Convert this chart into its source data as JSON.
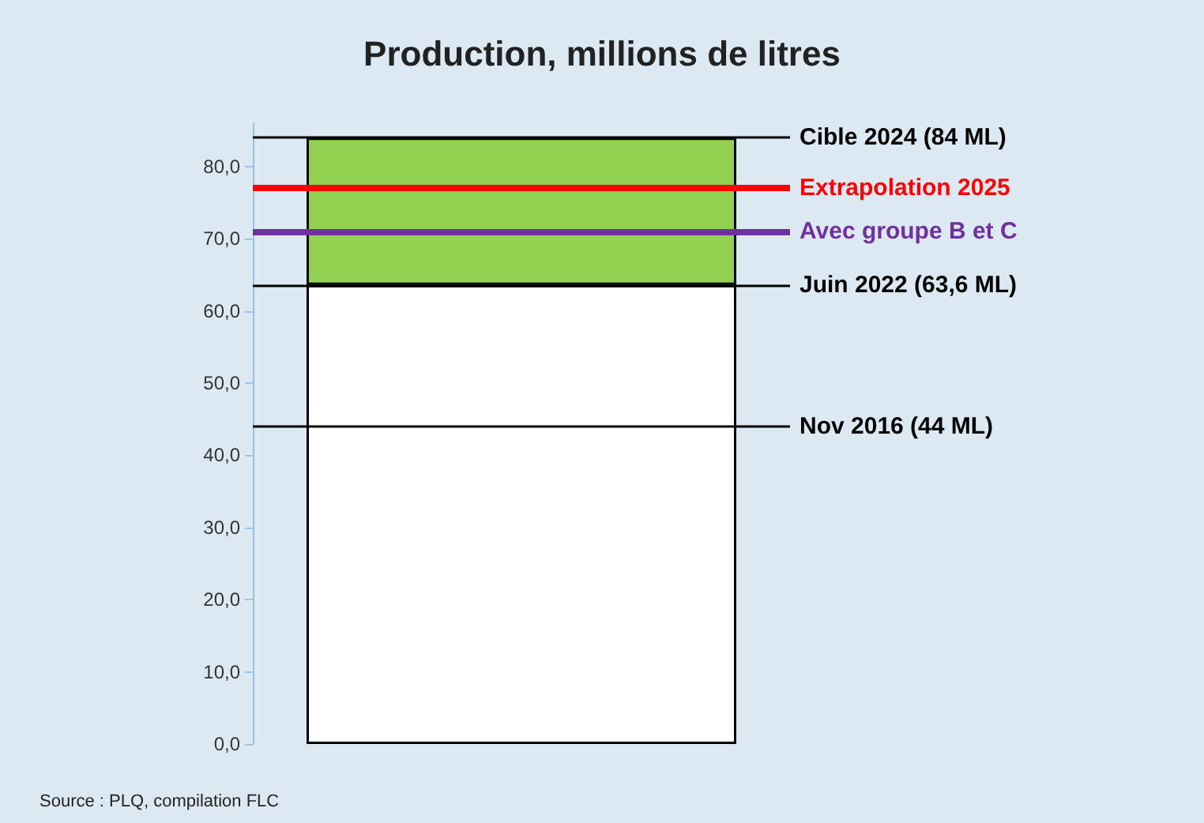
{
  "chart_data": {
    "type": "bar",
    "title": "Production, millions de litres",
    "categories": [
      null
    ],
    "stacked": true,
    "series": [
      {
        "color": "#ffffff",
        "values": [
          63.6
        ]
      },
      {
        "color": "#92d050",
        "values": [
          20.4
        ]
      }
    ],
    "ylim": [
      0,
      86
    ],
    "yticks": [
      {
        "value": 0,
        "label": "0,0"
      },
      {
        "value": 10,
        "label": "10,0"
      },
      {
        "value": 20,
        "label": "20,0"
      },
      {
        "value": 30,
        "label": "30,0"
      },
      {
        "value": 40,
        "label": "40,0"
      },
      {
        "value": 50,
        "label": "50,0"
      },
      {
        "value": 60,
        "label": "60,0"
      },
      {
        "value": 70,
        "label": "70,0"
      },
      {
        "value": 80,
        "label": "80,0"
      }
    ],
    "ref_lines": [
      {
        "axis": "y",
        "value": 84,
        "label": "Cible 2024 (84 ML)",
        "color": "#000000"
      },
      {
        "axis": "y",
        "value": 77,
        "label": "Extrapolation 2025",
        "color": "#ff0000"
      },
      {
        "axis": "y",
        "value": 71,
        "label": "Avec groupe B et C",
        "color": "#7030a0"
      },
      {
        "axis": "y",
        "value": 63.6,
        "label": "Juin 2022 (63,6 ML)",
        "color": "#000000"
      },
      {
        "axis": "y",
        "value": 44,
        "label": "Nov 2016 (44 ML)",
        "color": "#000000"
      }
    ],
    "grid": false,
    "line_style": "solid",
    "annotations": [
      "Source : PLQ, compilation FLC"
    ]
  }
}
